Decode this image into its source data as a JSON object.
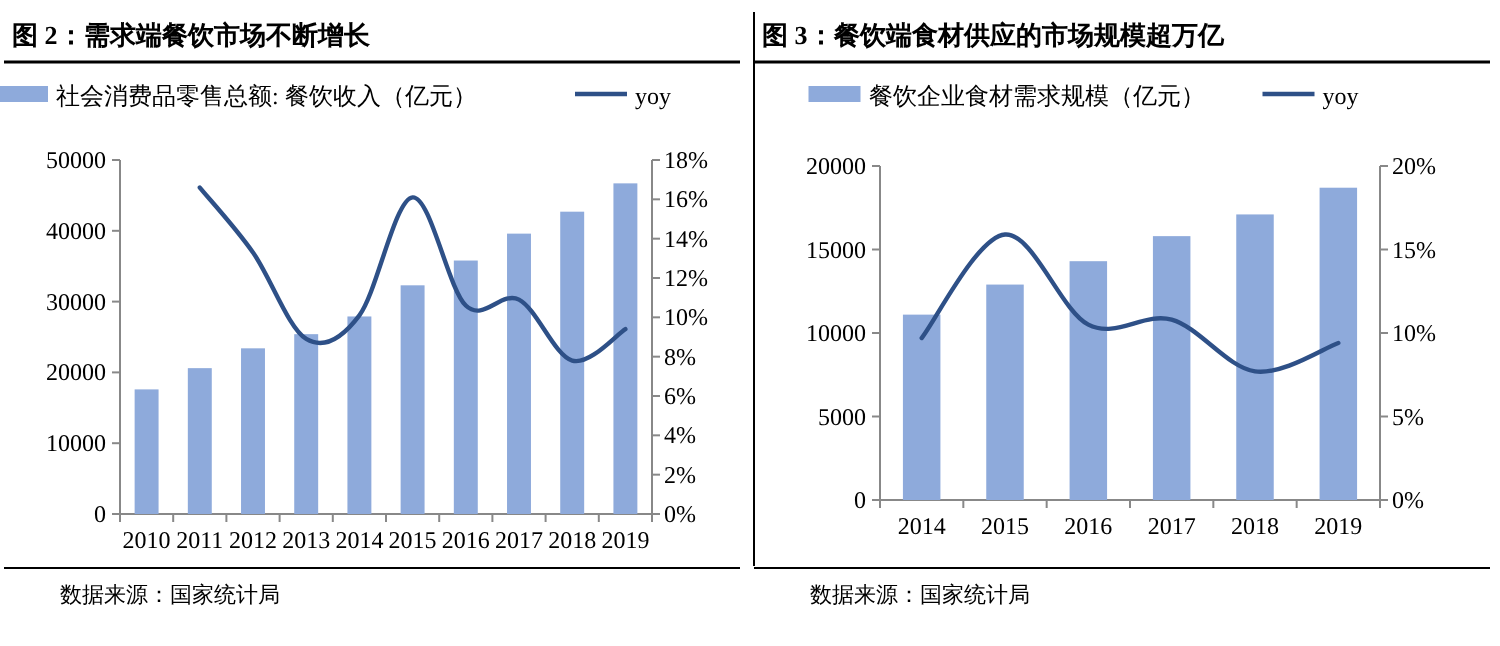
{
  "chart_data": [
    {
      "type": "bar",
      "title": "图 2：需求端餐饮市场不断增长",
      "categories": [
        "2010",
        "2011",
        "2012",
        "2013",
        "2014",
        "2015",
        "2016",
        "2017",
        "2018",
        "2019"
      ],
      "series": [
        {
          "name": "社会消费品零售总额: 餐饮收入（亿元）",
          "color": "#8eaadb",
          "values": [
            17600,
            20600,
            23400,
            25400,
            27900,
            32300,
            35800,
            39600,
            42700,
            46700
          ]
        },
        {
          "name": "yoy",
          "type": "line",
          "axis": "y2",
          "color": "#2e5087",
          "values": [
            null,
            16.6,
            13.3,
            8.9,
            10.1,
            16.1,
            10.6,
            10.9,
            7.8,
            9.4
          ]
        }
      ],
      "ylim": [
        0,
        50000
      ],
      "yticks": [
        0,
        10000,
        20000,
        30000,
        40000,
        50000
      ],
      "y2lim": [
        0,
        18
      ],
      "y2ticks": [
        {
          "value": 0,
          "label": "0%"
        },
        {
          "value": 2,
          "label": "2%"
        },
        {
          "value": 4,
          "label": "4%"
        },
        {
          "value": 6,
          "label": "6%"
        },
        {
          "value": 8,
          "label": "8%"
        },
        {
          "value": 10,
          "label": "10%"
        },
        {
          "value": 12,
          "label": "12%"
        },
        {
          "value": 14,
          "label": "14%"
        },
        {
          "value": 16,
          "label": "16%"
        },
        {
          "value": 18,
          "label": "18%"
        }
      ],
      "legend": "top",
      "grid": false,
      "annotations": [
        "数据来源：国家统计局"
      ]
    },
    {
      "type": "bar",
      "title": "图 3：餐饮端食材供应的市场规模超万亿",
      "categories": [
        "2014",
        "2015",
        "2016",
        "2017",
        "2018",
        "2019"
      ],
      "series": [
        {
          "name": "餐饮企业食材需求规模（亿元）",
          "color": "#8eaadb",
          "values": [
            11100,
            12900,
            14300,
            15800,
            17100,
            18700
          ]
        },
        {
          "name": "yoy",
          "type": "line",
          "axis": "y2",
          "color": "#2e5087",
          "values": [
            9.7,
            15.9,
            10.5,
            10.8,
            7.7,
            9.4
          ]
        }
      ],
      "ylim": [
        0,
        20000
      ],
      "yticks": [
        0,
        5000,
        10000,
        15000,
        20000
      ],
      "y2lim": [
        0,
        20
      ],
      "y2ticks": [
        {
          "value": 0,
          "label": "0%"
        },
        {
          "value": 5,
          "label": "5%"
        },
        {
          "value": 10,
          "label": "10%"
        },
        {
          "value": 15,
          "label": "15%"
        },
        {
          "value": 20,
          "label": "20%"
        }
      ],
      "legend": "top",
      "grid": false,
      "annotations": [
        "数据来源：国家统计局"
      ]
    }
  ]
}
